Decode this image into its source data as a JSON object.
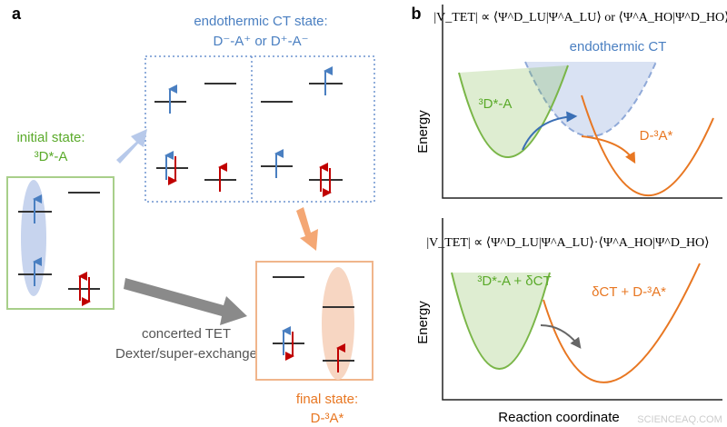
{
  "panel_a": {
    "label": "a",
    "ct_state": {
      "title": "endothermic CT state:",
      "subtitle": "D⁻-A⁺ or D⁺-A⁻"
    },
    "initial_state": {
      "title": "initial state:",
      "subtitle": "³D*-A"
    },
    "concerted": {
      "line1": "concerted TET",
      "line2": "Dexter/super-exchange"
    },
    "final_state": {
      "title": "final state:",
      "subtitle": "D-³A*"
    }
  },
  "panel_b": {
    "label": "b",
    "top": {
      "equation": "|V_TET| ∝ ⟨Ψ^D_LU|Ψ^A_LU⟩ or ⟨Ψ^A_HO|Ψ^D_HO⟩",
      "y_label": "Energy",
      "ct_label": "endothermic CT",
      "donor_label": "³D*-A",
      "acceptor_label": "D-³A*"
    },
    "bottom": {
      "equation": "|V_TET| ∝ ⟨Ψ^D_LU|Ψ^A_LU⟩·⟨Ψ^A_HO|Ψ^D_HO⟩",
      "y_label": "Energy",
      "donor_label": "³D*-A + δCT",
      "acceptor_label": "δCT + D-³A*"
    },
    "x_label": "Reaction coordinate"
  },
  "watermark": "SCIENCEAQ.COM"
}
